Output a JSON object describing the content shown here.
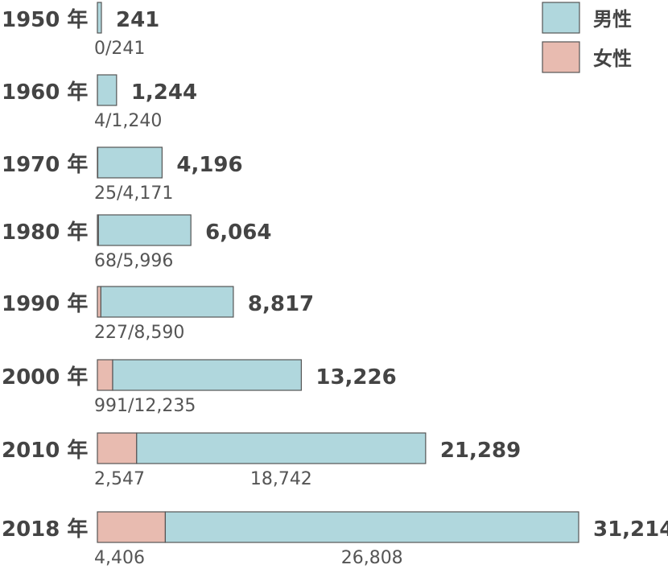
{
  "chart_data": {
    "type": "bar",
    "orientation": "horizontal",
    "stacked": true,
    "year_suffix": "年",
    "categories": [
      "1950",
      "1960",
      "1970",
      "1980",
      "1990",
      "2000",
      "2010",
      "2018"
    ],
    "series": [
      {
        "name": "女性",
        "values": [
          0,
          4,
          25,
          68,
          227,
          991,
          2547,
          4406
        ],
        "color": "#e8bbb0"
      },
      {
        "name": "男性",
        "values": [
          241,
          1240,
          4171,
          5996,
          8590,
          12235,
          18742,
          26808
        ],
        "color": "#b0d7dd"
      }
    ],
    "totals": [
      241,
      1244,
      4196,
      6064,
      8817,
      13226,
      21289,
      31214
    ],
    "legend_position": "top-right",
    "grid": false
  }
}
